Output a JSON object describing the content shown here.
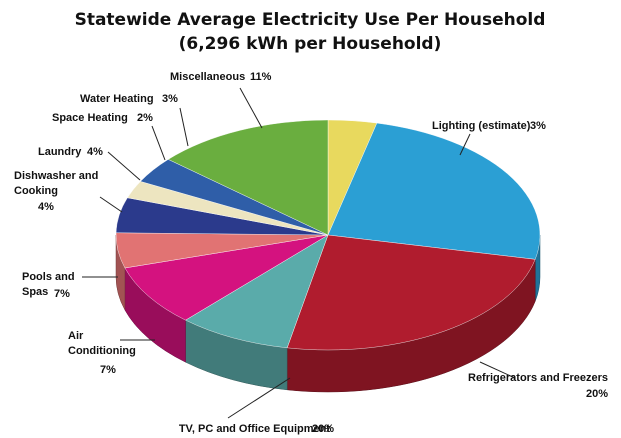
{
  "chart_data": {
    "type": "pie3d",
    "title": "Statewide Average Electricity Use Per Household",
    "subtitle": "(6,296 kWh per Household)",
    "categories": [
      "Lighting (estimate)",
      "Refrigerators and Freezers",
      "TV, PC and Office Equipment",
      "Air Conditioning",
      "Pools and Spas",
      "Dishwasher and Cooking",
      "Laundry",
      "Space Heating",
      "Water Heating",
      "Miscellaneous"
    ],
    "values": [
      3,
      20,
      20,
      7,
      7,
      4,
      4,
      2,
      3,
      11
    ],
    "value_labels": [
      "3%",
      "20%",
      "20%",
      "7%",
      "7%",
      "4%",
      "4%",
      "2%",
      "3%",
      "11%"
    ],
    "colors": [
      "#e8d95e",
      "#2b9fd4",
      "#b01c2e",
      "#5aabaa",
      "#d4127f",
      "#e17373",
      "#2b3a8c",
      "#ede5c0",
      "#2f5ea8",
      "#6aae3f"
    ]
  }
}
